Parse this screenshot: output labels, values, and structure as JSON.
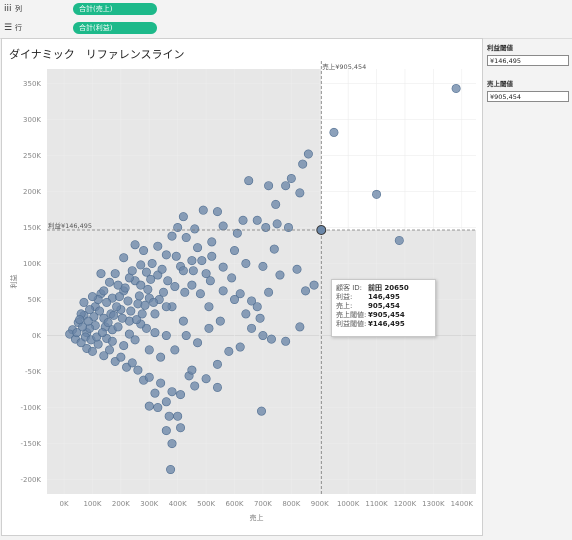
{
  "shelves": {
    "columns": {
      "icon": "iii",
      "label": "列",
      "pill": "合計(売上)"
    },
    "rows": {
      "icon": "☰",
      "label": "行",
      "pill": "合計(利益)"
    }
  },
  "view": {
    "title": "ダイナミック　リファレンスライン",
    "ref_x_label": "売上¥905,454",
    "ref_y_label": "利益¥146,495",
    "tooltip": {
      "rows": [
        {
          "key": "顧客 ID:",
          "value": "前田 20650"
        },
        {
          "key": "利益:",
          "value": "146,495"
        },
        {
          "key": "売上:",
          "value": "905,454"
        },
        {
          "key": "売上閾値:",
          "value": "¥905,454"
        },
        {
          "key": "利益閾値:",
          "value": "¥146,495"
        }
      ]
    }
  },
  "parameters": {
    "profit": {
      "title": "利益閾値",
      "value": "¥146,495"
    },
    "sales": {
      "title": "売上閾値",
      "value": "¥905,454"
    }
  },
  "colors": {
    "pill": "#1db98a",
    "mark": "#6b87a8",
    "mark_stroke": "#4f6d90",
    "shade": "#e7e7e7"
  },
  "chart_data": {
    "type": "scatter",
    "title": "ダイナミック　リファレンスライン",
    "xlabel": "売上",
    "ylabel": "利益",
    "xlim": [
      -60000,
      1450000
    ],
    "ylim": [
      -220000,
      370000
    ],
    "x_ticks": [
      "0K",
      "100K",
      "200K",
      "300K",
      "400K",
      "500K",
      "600K",
      "700K",
      "800K",
      "900K",
      "1000K",
      "1100K",
      "1200K",
      "1300K",
      "1400K"
    ],
    "y_ticks": [
      "350K",
      "300K",
      "250K",
      "200K",
      "150K",
      "100K",
      "50K",
      "0K",
      "-50K",
      "-100K",
      "-150K",
      "-200K"
    ],
    "reference_lines": {
      "x": 905454,
      "y": 146495
    },
    "highlighted_point": {
      "x": 905454,
      "y": 146495
    },
    "points": [
      [
        1380000,
        343000
      ],
      [
        950000,
        282000
      ],
      [
        1100000,
        196000
      ],
      [
        1180000,
        132000
      ],
      [
        1250000,
        68000
      ],
      [
        860000,
        252000
      ],
      [
        840000,
        238000
      ],
      [
        800000,
        218000
      ],
      [
        830000,
        198000
      ],
      [
        780000,
        208000
      ],
      [
        720000,
        208000
      ],
      [
        745000,
        182000
      ],
      [
        750000,
        155000
      ],
      [
        710000,
        150000
      ],
      [
        680000,
        160000
      ],
      [
        650000,
        215000
      ],
      [
        630000,
        160000
      ],
      [
        610000,
        142000
      ],
      [
        540000,
        172000
      ],
      [
        560000,
        152000
      ],
      [
        600000,
        118000
      ],
      [
        640000,
        100000
      ],
      [
        700000,
        96000
      ],
      [
        760000,
        84000
      ],
      [
        820000,
        92000
      ],
      [
        850000,
        62000
      ],
      [
        880000,
        70000
      ],
      [
        830000,
        12000
      ],
      [
        780000,
        -8000
      ],
      [
        730000,
        -5000
      ],
      [
        700000,
        0
      ],
      [
        680000,
        40000
      ],
      [
        660000,
        48000
      ],
      [
        620000,
        58000
      ],
      [
        590000,
        80000
      ],
      [
        560000,
        95000
      ],
      [
        520000,
        110000
      ],
      [
        500000,
        86000
      ],
      [
        470000,
        122000
      ],
      [
        450000,
        104000
      ],
      [
        430000,
        136000
      ],
      [
        410000,
        96000
      ],
      [
        380000,
        138000
      ],
      [
        360000,
        112000
      ],
      [
        330000,
        124000
      ],
      [
        310000,
        100000
      ],
      [
        290000,
        88000
      ],
      [
        270000,
        98000
      ],
      [
        250000,
        76000
      ],
      [
        230000,
        80000
      ],
      [
        210000,
        62000
      ],
      [
        190000,
        70000
      ],
      [
        170000,
        52000
      ],
      [
        150000,
        46000
      ],
      [
        130000,
        58000
      ],
      [
        110000,
        40000
      ],
      [
        90000,
        36000
      ],
      [
        70000,
        28000
      ],
      [
        50000,
        18000
      ],
      [
        30000,
        8000
      ],
      [
        20000,
        2000
      ],
      [
        40000,
        -5000
      ],
      [
        60000,
        -10000
      ],
      [
        80000,
        -18000
      ],
      [
        100000,
        -22000
      ],
      [
        120000,
        -12000
      ],
      [
        140000,
        -28000
      ],
      [
        160000,
        -20000
      ],
      [
        180000,
        -36000
      ],
      [
        200000,
        -30000
      ],
      [
        220000,
        -44000
      ],
      [
        240000,
        -38000
      ],
      [
        260000,
        -48000
      ],
      [
        280000,
        -62000
      ],
      [
        300000,
        -58000
      ],
      [
        320000,
        -80000
      ],
      [
        340000,
        -66000
      ],
      [
        360000,
        -92000
      ],
      [
        380000,
        -78000
      ],
      [
        410000,
        -82000
      ],
      [
        440000,
        -56000
      ],
      [
        460000,
        -70000
      ],
      [
        500000,
        -60000
      ],
      [
        540000,
        -40000
      ],
      [
        580000,
        -22000
      ],
      [
        620000,
        -16000
      ],
      [
        660000,
        10000
      ],
      [
        690000,
        24000
      ],
      [
        330000,
        -100000
      ],
      [
        300000,
        -98000
      ],
      [
        370000,
        -112000
      ],
      [
        360000,
        -132000
      ],
      [
        400000,
        -112000
      ],
      [
        380000,
        -150000
      ],
      [
        410000,
        -128000
      ],
      [
        375000,
        -186000
      ],
      [
        695000,
        -105000
      ],
      [
        540000,
        -72000
      ],
      [
        450000,
        -48000
      ],
      [
        420000,
        20000
      ],
      [
        380000,
        40000
      ],
      [
        350000,
        60000
      ],
      [
        320000,
        30000
      ],
      [
        290000,
        10000
      ],
      [
        260000,
        44000
      ],
      [
        230000,
        20000
      ],
      [
        200000,
        36000
      ],
      [
        170000,
        8000
      ],
      [
        140000,
        24000
      ],
      [
        110000,
        14000
      ],
      [
        80000,
        4000
      ],
      [
        130000,
        86000
      ],
      [
        210000,
        108000
      ],
      [
        250000,
        126000
      ],
      [
        280000,
        118000
      ],
      [
        400000,
        150000
      ],
      [
        420000,
        165000
      ],
      [
        460000,
        148000
      ],
      [
        490000,
        174000
      ],
      [
        520000,
        130000
      ],
      [
        450000,
        70000
      ],
      [
        480000,
        58000
      ],
      [
        510000,
        40000
      ],
      [
        550000,
        20000
      ],
      [
        560000,
        62000
      ],
      [
        600000,
        50000
      ],
      [
        640000,
        30000
      ],
      [
        720000,
        60000
      ],
      [
        740000,
        120000
      ],
      [
        790000,
        150000
      ],
      [
        240000,
        90000
      ],
      [
        270000,
        70000
      ],
      [
        300000,
        52000
      ],
      [
        330000,
        84000
      ],
      [
        360000,
        40000
      ],
      [
        390000,
        68000
      ],
      [
        420000,
        90000
      ],
      [
        180000,
        86000
      ],
      [
        160000,
        74000
      ],
      [
        140000,
        62000
      ],
      [
        120000,
        50000
      ],
      [
        100000,
        54000
      ],
      [
        60000,
        30000
      ],
      [
        70000,
        46000
      ],
      [
        90000,
        10000
      ],
      [
        150000,
        -4000
      ],
      [
        170000,
        -8000
      ],
      [
        190000,
        12000
      ],
      [
        210000,
        -14000
      ],
      [
        230000,
        2000
      ],
      [
        250000,
        -6000
      ],
      [
        270000,
        16000
      ],
      [
        300000,
        -20000
      ],
      [
        320000,
        4000
      ],
      [
        340000,
        -30000
      ],
      [
        360000,
        0
      ],
      [
        390000,
        -20000
      ],
      [
        430000,
        0
      ],
      [
        470000,
        -10000
      ],
      [
        510000,
        10000
      ],
      [
        265000,
        55000
      ],
      [
        285000,
        42000
      ],
      [
        305000,
        78000
      ],
      [
        335000,
        50000
      ],
      [
        225000,
        48000
      ],
      [
        205000,
        24000
      ],
      [
        185000,
        40000
      ],
      [
        165000,
        30000
      ],
      [
        145000,
        12000
      ],
      [
        125000,
        34000
      ],
      [
        105000,
        26000
      ],
      [
        85000,
        20000
      ],
      [
        65000,
        12000
      ],
      [
        45000,
        4000
      ],
      [
        55000,
        22000
      ],
      [
        75000,
        -2000
      ],
      [
        95000,
        -6000
      ],
      [
        115000,
        -2000
      ],
      [
        135000,
        4000
      ],
      [
        155000,
        18000
      ],
      [
        175000,
        28000
      ],
      [
        195000,
        54000
      ],
      [
        215000,
        66000
      ],
      [
        235000,
        34000
      ],
      [
        255000,
        22000
      ],
      [
        275000,
        30000
      ],
      [
        295000,
        64000
      ],
      [
        315000,
        46000
      ],
      [
        345000,
        92000
      ],
      [
        365000,
        76000
      ],
      [
        395000,
        110000
      ],
      [
        425000,
        60000
      ],
      [
        455000,
        90000
      ],
      [
        485000,
        104000
      ],
      [
        515000,
        76000
      ]
    ]
  }
}
